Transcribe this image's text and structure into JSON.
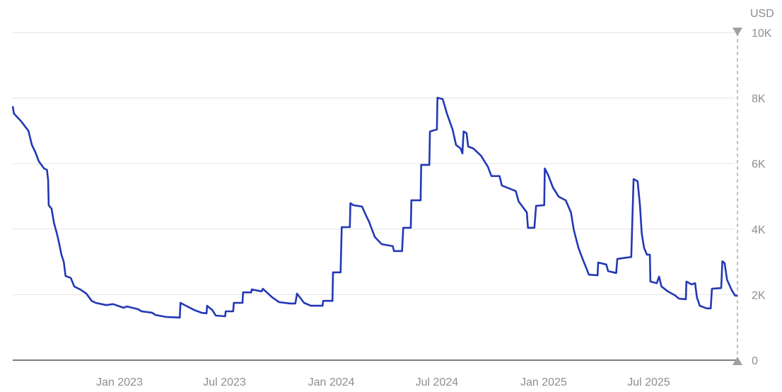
{
  "chart_data": {
    "type": "line",
    "title": "",
    "xlabel": "",
    "ylabel": "USD",
    "xlim": [
      "2022-07-01",
      "2025-12-01"
    ],
    "ylim": [
      0,
      10000
    ],
    "y_ticks": [
      0,
      2000,
      4000,
      6000,
      8000,
      10000
    ],
    "y_tick_labels": [
      "0",
      "2K",
      "4K",
      "6K",
      "8K",
      "10K"
    ],
    "x_ticks": [
      "2023-01-01",
      "2023-07-01",
      "2024-01-01",
      "2024-07-01",
      "2025-01-01",
      "2025-07-01"
    ],
    "x_tick_labels": [
      "Jan 2023",
      "Jul 2023",
      "Jan 2024",
      "Jul 2024",
      "Jan 2025",
      "Jul 2025"
    ],
    "grid": true,
    "y_axis_position": "right",
    "colors": {
      "line": "#2238b5",
      "grid": "#e3e3e3",
      "axis": "#333333",
      "marker": "#a0a0a0",
      "tick_text": "#8e8e93"
    },
    "series": [
      {
        "points": [
          [
            "2022-07-01",
            7750
          ],
          [
            "2022-07-03",
            7530
          ],
          [
            "2022-07-16",
            7280
          ],
          [
            "2022-07-28",
            7000
          ],
          [
            "2022-08-03",
            6570
          ],
          [
            "2022-08-09",
            6350
          ],
          [
            "2022-08-15",
            6070
          ],
          [
            "2022-08-24",
            5850
          ],
          [
            "2022-08-29",
            5810
          ],
          [
            "2022-08-31",
            5490
          ],
          [
            "2022-09-01",
            4730
          ],
          [
            "2022-09-06",
            4620
          ],
          [
            "2022-09-10",
            4190
          ],
          [
            "2022-09-15",
            3870
          ],
          [
            "2022-09-18",
            3650
          ],
          [
            "2022-09-23",
            3220
          ],
          [
            "2022-09-27",
            3000
          ],
          [
            "2022-09-30",
            2570
          ],
          [
            "2022-10-09",
            2510
          ],
          [
            "2022-10-15",
            2250
          ],
          [
            "2022-10-27",
            2140
          ],
          [
            "2022-11-05",
            2030
          ],
          [
            "2022-11-14",
            1810
          ],
          [
            "2022-11-21",
            1750
          ],
          [
            "2022-12-09",
            1680
          ],
          [
            "2022-12-21",
            1710
          ],
          [
            "2023-01-08",
            1600
          ],
          [
            "2023-01-14",
            1640
          ],
          [
            "2023-02-02",
            1555
          ],
          [
            "2023-02-08",
            1490
          ],
          [
            "2023-02-26",
            1450
          ],
          [
            "2023-03-04",
            1380
          ],
          [
            "2023-03-22",
            1320
          ],
          [
            "2023-04-15",
            1300
          ],
          [
            "2023-04-16",
            1750
          ],
          [
            "2023-04-28",
            1640
          ],
          [
            "2023-05-10",
            1530
          ],
          [
            "2023-05-22",
            1450
          ],
          [
            "2023-05-31",
            1430
          ],
          [
            "2023-06-01",
            1660
          ],
          [
            "2023-06-10",
            1530
          ],
          [
            "2023-06-16",
            1360
          ],
          [
            "2023-07-02",
            1340
          ],
          [
            "2023-07-03",
            1490
          ],
          [
            "2023-07-16",
            1490
          ],
          [
            "2023-07-17",
            1750
          ],
          [
            "2023-08-01",
            1750
          ],
          [
            "2023-08-02",
            2070
          ],
          [
            "2023-08-16",
            2070
          ],
          [
            "2023-08-17",
            2160
          ],
          [
            "2023-09-03",
            2100
          ],
          [
            "2023-09-05",
            2180
          ],
          [
            "2023-09-21",
            1920
          ],
          [
            "2023-10-03",
            1770
          ],
          [
            "2023-10-22",
            1730
          ],
          [
            "2023-10-31",
            1730
          ],
          [
            "2023-11-03",
            2030
          ],
          [
            "2023-11-15",
            1750
          ],
          [
            "2023-11-27",
            1660
          ],
          [
            "2023-12-17",
            1660
          ],
          [
            "2023-12-18",
            1810
          ],
          [
            "2024-01-03",
            1810
          ],
          [
            "2024-01-04",
            2680
          ],
          [
            "2024-01-17",
            2680
          ],
          [
            "2024-01-19",
            4060
          ],
          [
            "2024-02-02",
            4060
          ],
          [
            "2024-02-03",
            4790
          ],
          [
            "2024-02-08",
            4730
          ],
          [
            "2024-02-23",
            4690
          ],
          [
            "2024-03-01",
            4410
          ],
          [
            "2024-03-06",
            4230
          ],
          [
            "2024-03-16",
            3760
          ],
          [
            "2024-03-28",
            3540
          ],
          [
            "2024-04-16",
            3480
          ],
          [
            "2024-04-18",
            3330
          ],
          [
            "2024-05-02",
            3330
          ],
          [
            "2024-05-04",
            4040
          ],
          [
            "2024-05-17",
            4040
          ],
          [
            "2024-05-18",
            4880
          ],
          [
            "2024-06-03",
            4880
          ],
          [
            "2024-06-04",
            5960
          ],
          [
            "2024-06-18",
            5960
          ],
          [
            "2024-06-19",
            6980
          ],
          [
            "2024-07-01",
            7040
          ],
          [
            "2024-07-02",
            8010
          ],
          [
            "2024-07-11",
            7970
          ],
          [
            "2024-07-18",
            7540
          ],
          [
            "2024-07-28",
            7040
          ],
          [
            "2024-08-03",
            6570
          ],
          [
            "2024-08-11",
            6460
          ],
          [
            "2024-08-14",
            6310
          ],
          [
            "2024-08-16",
            6980
          ],
          [
            "2024-08-21",
            6930
          ],
          [
            "2024-08-24",
            6520
          ],
          [
            "2024-09-02",
            6460
          ],
          [
            "2024-09-15",
            6240
          ],
          [
            "2024-09-27",
            5900
          ],
          [
            "2024-10-03",
            5620
          ],
          [
            "2024-10-17",
            5620
          ],
          [
            "2024-10-21",
            5330
          ],
          [
            "2024-11-14",
            5160
          ],
          [
            "2024-11-19",
            4840
          ],
          [
            "2024-12-03",
            4510
          ],
          [
            "2024-12-05",
            4040
          ],
          [
            "2024-12-16",
            4040
          ],
          [
            "2024-12-19",
            4710
          ],
          [
            "2025-01-02",
            4730
          ],
          [
            "2025-01-03",
            5850
          ],
          [
            "2025-01-09",
            5640
          ],
          [
            "2025-01-17",
            5270
          ],
          [
            "2025-01-27",
            4990
          ],
          [
            "2025-02-08",
            4880
          ],
          [
            "2025-02-17",
            4510
          ],
          [
            "2025-02-22",
            3970
          ],
          [
            "2025-03-02",
            3430
          ],
          [
            "2025-03-10",
            3050
          ],
          [
            "2025-03-16",
            2790
          ],
          [
            "2025-03-20",
            2610
          ],
          [
            "2025-04-04",
            2590
          ],
          [
            "2025-04-05",
            2980
          ],
          [
            "2025-04-19",
            2920
          ],
          [
            "2025-04-22",
            2720
          ],
          [
            "2025-05-06",
            2660
          ],
          [
            "2025-05-08",
            3090
          ],
          [
            "2025-06-01",
            3150
          ],
          [
            "2025-06-05",
            5530
          ],
          [
            "2025-06-12",
            5460
          ],
          [
            "2025-06-16",
            4730
          ],
          [
            "2025-06-19",
            3870
          ],
          [
            "2025-06-23",
            3430
          ],
          [
            "2025-06-28",
            3220
          ],
          [
            "2025-07-03",
            3220
          ],
          [
            "2025-07-04",
            2400
          ],
          [
            "2025-07-15",
            2350
          ],
          [
            "2025-07-19",
            2550
          ],
          [
            "2025-07-23",
            2250
          ],
          [
            "2025-08-03",
            2100
          ],
          [
            "2025-08-16",
            1970
          ],
          [
            "2025-08-22",
            1880
          ],
          [
            "2025-09-03",
            1860
          ],
          [
            "2025-09-04",
            2400
          ],
          [
            "2025-09-13",
            2310
          ],
          [
            "2025-09-19",
            2350
          ],
          [
            "2025-09-22",
            1920
          ],
          [
            "2025-09-27",
            1660
          ],
          [
            "2025-10-09",
            1580
          ],
          [
            "2025-10-16",
            1580
          ],
          [
            "2025-10-18",
            2180
          ],
          [
            "2025-11-03",
            2200
          ],
          [
            "2025-11-05",
            3020
          ],
          [
            "2025-11-09",
            2960
          ],
          [
            "2025-11-13",
            2460
          ],
          [
            "2025-11-21",
            2140
          ],
          [
            "2025-11-27",
            1970
          ],
          [
            "2025-12-01",
            1970
          ]
        ]
      }
    ]
  }
}
